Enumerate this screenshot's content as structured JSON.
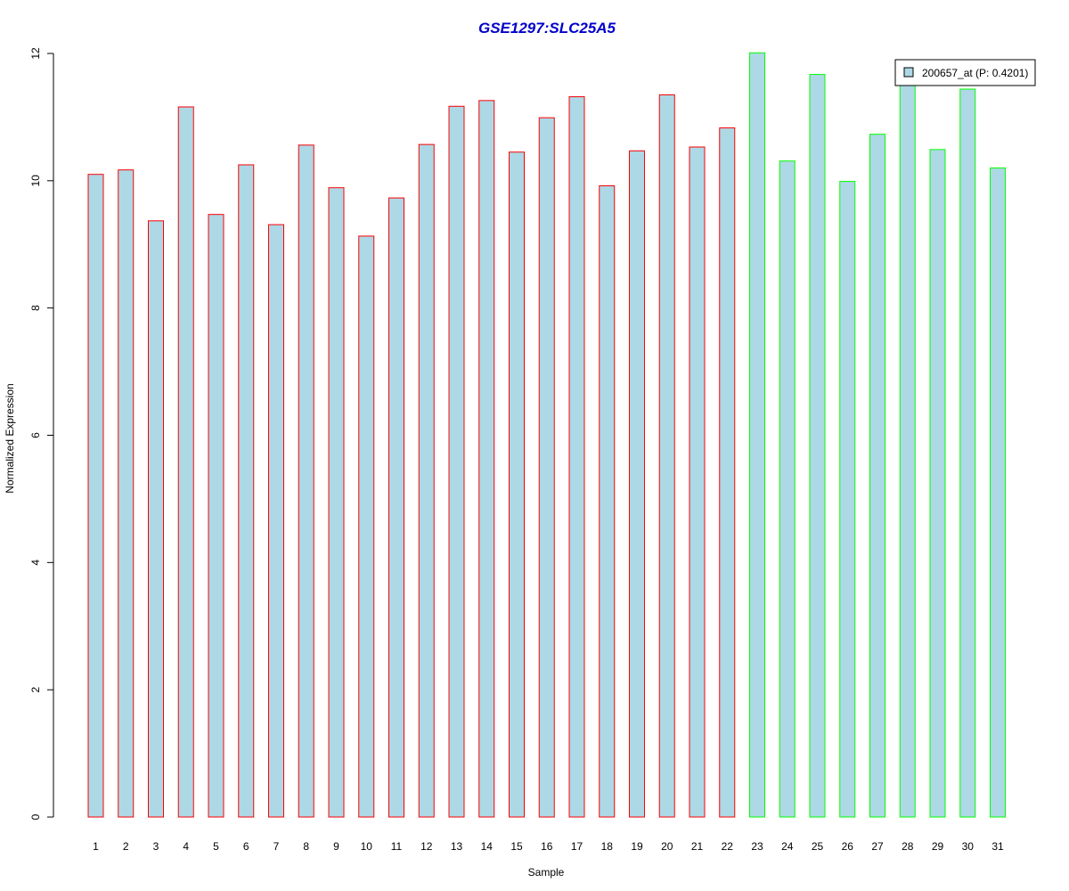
{
  "chart_data": {
    "type": "bar",
    "title": "GSE1297:SLC25A5",
    "xlabel": "Sample",
    "ylabel": "Normalized Expression",
    "ylim": [
      0,
      12
    ],
    "yticks": [
      "0",
      "2",
      "4",
      "6",
      "8",
      "10",
      "12"
    ],
    "categories": [
      "1",
      "2",
      "3",
      "4",
      "5",
      "6",
      "7",
      "8",
      "9",
      "10",
      "11",
      "12",
      "13",
      "14",
      "15",
      "16",
      "17",
      "18",
      "19",
      "20",
      "21",
      "22",
      "23",
      "24",
      "25",
      "26",
      "27",
      "28",
      "29",
      "30",
      "31"
    ],
    "values": [
      10.1,
      10.17,
      9.37,
      11.16,
      9.47,
      10.25,
      9.31,
      10.56,
      9.89,
      9.13,
      9.73,
      10.57,
      11.17,
      11.26,
      10.45,
      10.99,
      11.32,
      9.92,
      10.47,
      11.35,
      10.53,
      10.83,
      12.01,
      10.31,
      11.67,
      9.99,
      10.73,
      11.58,
      10.49,
      11.44,
      10.2
    ],
    "groups": [
      "red",
      "red",
      "red",
      "red",
      "red",
      "red",
      "red",
      "red",
      "red",
      "red",
      "red",
      "red",
      "red",
      "red",
      "red",
      "red",
      "red",
      "red",
      "red",
      "red",
      "red",
      "red",
      "green",
      "green",
      "green",
      "green",
      "green",
      "green",
      "green",
      "green",
      "green"
    ],
    "legend": {
      "label": "200657_at (P: 0.4201)",
      "position": "top-right"
    },
    "grid": false
  },
  "colors": {
    "bar_fill": "#add8e6",
    "border_group_red": "#ff0000",
    "border_group_green": "#00ff00",
    "title": "#0000cc",
    "axis": "#000000"
  }
}
